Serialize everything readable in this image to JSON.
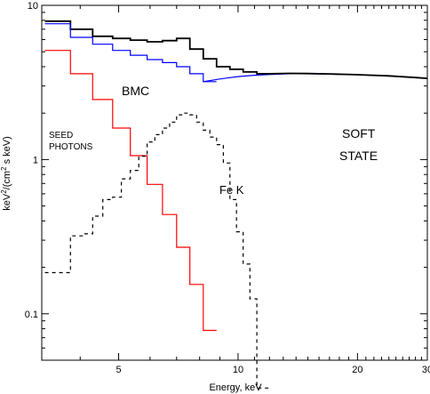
{
  "chart_data": {
    "type": "line",
    "xlabel": "Energy, keV",
    "ylabel_parts": [
      "keV",
      "2",
      "/(cm",
      "2",
      " s keV)"
    ],
    "xscale": "log",
    "yscale": "log",
    "xlim": [
      3.2,
      30
    ],
    "ylim": [
      0.05,
      10
    ],
    "xticks": [
      5,
      10,
      20,
      30
    ],
    "xtick_labels": [
      "5",
      "10",
      "20",
      "30"
    ],
    "yticks": [
      0.1,
      1,
      10
    ],
    "ytick_labels": [
      "0.1",
      "1",
      "10"
    ],
    "grid": false,
    "legend": "none",
    "annotations": {
      "bmc": "BMC",
      "seed_line1": "SEED",
      "seed_line2": "PHOTONS",
      "fek": "Fe K",
      "state_line1": "SOFT",
      "state_line2": "STATE"
    },
    "series": [
      {
        "key": "total",
        "color": "#000000",
        "style": "step",
        "x": [
          3.26,
          3.78,
          4.3,
          4.83,
          5.35,
          5.9,
          6.45,
          7.0,
          7.56,
          8.17,
          8.83,
          9.54,
          10.3,
          11.15
        ],
        "y": [
          7.9,
          7.0,
          6.3,
          6.1,
          5.95,
          5.8,
          5.9,
          6.1,
          5.2,
          4.5,
          4.0,
          3.85,
          3.7,
          3.6
        ]
      },
      {
        "key": "bmc",
        "color": "#0000ff",
        "style": "step",
        "x": [
          3.26,
          3.78,
          4.3,
          4.83,
          5.35,
          5.9,
          6.45,
          7.0,
          7.56,
          8.17
        ],
        "y": [
          7.6,
          6.2,
          5.6,
          5.1,
          4.75,
          4.45,
          4.25,
          4.0,
          3.6,
          3.2
        ]
      },
      {
        "key": "bmc_smooth",
        "color": "#0000ff",
        "style": "line",
        "x": [
          8.17,
          9.0,
          10.0,
          11.0,
          12.0,
          13.5,
          15.0,
          17.0,
          20.0,
          24.0,
          28.0,
          30.0
        ],
        "y": [
          3.2,
          3.33,
          3.45,
          3.52,
          3.56,
          3.6,
          3.6,
          3.58,
          3.55,
          3.48,
          3.4,
          3.36
        ]
      },
      {
        "key": "total_tail",
        "color": "#000000",
        "style": "line",
        "x": [
          11.15,
          12.0,
          13.5,
          15.0,
          17.0,
          20.0,
          24.0,
          28.0,
          30.0
        ],
        "y": [
          3.6,
          3.6,
          3.62,
          3.61,
          3.59,
          3.55,
          3.49,
          3.4,
          3.36
        ]
      },
      {
        "key": "seed_photons",
        "color": "#ff0000",
        "style": "step",
        "x": [
          3.26,
          3.78,
          4.3,
          4.83,
          5.35,
          5.9,
          6.45,
          7.0,
          7.56,
          8.17
        ],
        "y": [
          5.1,
          3.6,
          2.45,
          1.6,
          1.06,
          0.69,
          0.44,
          0.27,
          0.155,
          0.078
        ]
      },
      {
        "key": "fe_k",
        "color": "#000000",
        "style": "step-dashed",
        "x": [
          3.26,
          3.52,
          3.78,
          4.05,
          4.3,
          4.56,
          4.83,
          5.08,
          5.35,
          5.62,
          5.9,
          6.17,
          6.45,
          6.72,
          7.0,
          7.28,
          7.56,
          7.86,
          8.17,
          8.49,
          8.83,
          9.18,
          9.54,
          9.91,
          10.3,
          10.71,
          11.15
        ],
        "y": [
          0.185,
          0.185,
          0.32,
          0.33,
          0.43,
          0.55,
          0.57,
          0.75,
          0.85,
          1.05,
          1.3,
          1.45,
          1.6,
          1.75,
          1.95,
          2.0,
          1.95,
          1.75,
          1.55,
          1.4,
          1.25,
          0.95,
          0.55,
          0.34,
          0.21,
          0.125,
          0.033
        ]
      }
    ]
  }
}
